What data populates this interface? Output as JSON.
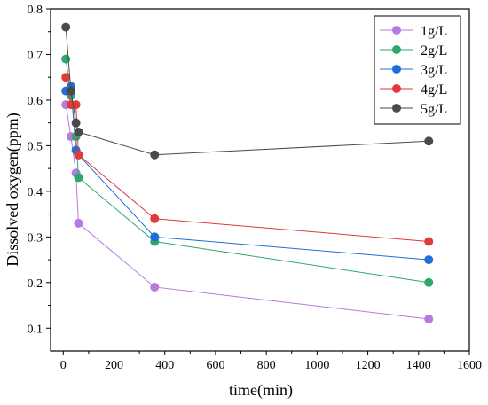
{
  "chart_data": {
    "type": "line",
    "title": "",
    "xlabel": "time(min)",
    "ylabel": "Dissolved oxygen(ppm)",
    "xlim": [
      -50,
      1600
    ],
    "ylim": [
      0.05,
      0.8
    ],
    "x_ticks": [
      0,
      200,
      400,
      600,
      800,
      1000,
      1200,
      1400,
      1600
    ],
    "y_ticks": [
      0.1,
      0.2,
      0.3,
      0.4,
      0.5,
      0.6,
      0.7,
      0.8
    ],
    "grid": false,
    "legend_position": "top-right",
    "series": [
      {
        "name": "1g/L",
        "color": "#b57be0",
        "x": [
          10,
          30,
          50,
          60,
          360,
          1440
        ],
        "values": [
          0.59,
          0.52,
          0.44,
          0.33,
          0.19,
          0.12
        ]
      },
      {
        "name": "2g/L",
        "color": "#2ea86a",
        "x": [
          10,
          30,
          50,
          60,
          360,
          1440
        ],
        "values": [
          0.69,
          0.61,
          0.52,
          0.43,
          0.29,
          0.2
        ]
      },
      {
        "name": "3g/L",
        "color": "#1f6fd6",
        "x": [
          10,
          30,
          50,
          60,
          360,
          1440
        ],
        "values": [
          0.62,
          0.63,
          0.49,
          0.48,
          0.3,
          0.25
        ]
      },
      {
        "name": "4g/L",
        "color": "#e03a3a",
        "x": [
          10,
          30,
          50,
          60,
          360,
          1440
        ],
        "values": [
          0.65,
          0.59,
          0.59,
          0.48,
          0.34,
          0.29
        ]
      },
      {
        "name": "5g/L",
        "color": "#4a4a4a",
        "x": [
          10,
          30,
          50,
          60,
          360,
          1440
        ],
        "values": [
          0.76,
          0.62,
          0.55,
          0.53,
          0.48,
          0.51
        ]
      }
    ]
  }
}
